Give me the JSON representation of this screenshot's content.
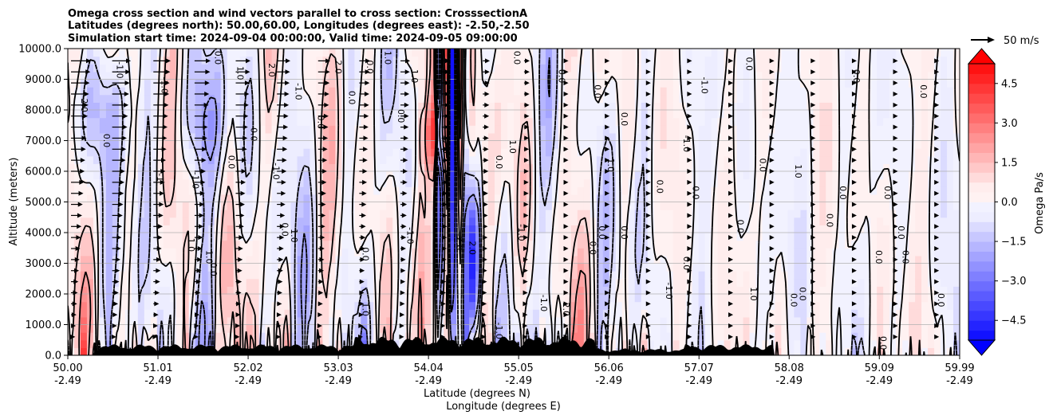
{
  "chart_data": {
    "type": "heatmap",
    "title_lines": [
      "Omega cross section and wind vectors parallel to cross section: CrosssectionA",
      "Latitudes (degrees north): 50.00,60.00, Longitudes (degrees east): -2.50,-2.50",
      "Simulation start time: 2024-09-04 00:00:00, Valid time: 2024-09-05 09:00:00"
    ],
    "ylabel": "Altitude (meters)",
    "xlabel_lat": "Latitude (degrees N)",
    "xlabel_lon": "Longitude (degrees E)",
    "ylim": [
      0,
      10000
    ],
    "yticks": [
      "0.0",
      "1000.0",
      "2000.0",
      "3000.0",
      "4000.0",
      "5000.0",
      "6000.0",
      "7000.0",
      "8000.0",
      "9000.0",
      "10000.0"
    ],
    "ytick_values": [
      0,
      1000,
      2000,
      3000,
      4000,
      5000,
      6000,
      7000,
      8000,
      9000,
      10000
    ],
    "xlim": [
      50.0,
      59.99
    ],
    "xtick_values": [
      50.0,
      51.01,
      52.02,
      53.03,
      54.04,
      55.05,
      56.06,
      57.07,
      58.08,
      59.09,
      59.99
    ],
    "xtick_lat_labels": [
      "50.00",
      "51.01",
      "52.02",
      "53.03",
      "54.04",
      "55.05",
      "56.06",
      "57.07",
      "58.08",
      "59.09",
      "59.99"
    ],
    "xtick_lon_labels": [
      "-2.49",
      "-2.49",
      "-2.49",
      "-2.49",
      "-2.49",
      "-2.49",
      "-2.49",
      "-2.49",
      "-2.49",
      "-2.49",
      "-2.49"
    ],
    "grid": true,
    "colorbar": {
      "label": "Omega Pa/s",
      "range": [
        -5.25,
        5.25
      ],
      "ticks": [
        4.5,
        3.0,
        1.5,
        0.0,
        -1.5,
        -3.0,
        -4.5
      ],
      "tick_labels": [
        "4.5",
        "3.0",
        "1.5",
        "0.0",
        "−1.5",
        "−3.0",
        "−4.5"
      ],
      "extend": "both"
    },
    "quiver_key": {
      "label": "50 m/s",
      "value": 50
    },
    "contour_labels": [
      {
        "lat": 50.15,
        "alt": 8200,
        "text": "-2.0"
      },
      {
        "lat": 50.4,
        "alt": 7000,
        "text": "0.0"
      },
      {
        "lat": 50.55,
        "alt": 9300,
        "text": "-1.0"
      },
      {
        "lat": 51.0,
        "alt": 5800,
        "text": "-1"
      },
      {
        "lat": 51.05,
        "alt": 8800,
        "text": "-1.0"
      },
      {
        "lat": 51.35,
        "alt": 3600,
        "text": "1.0"
      },
      {
        "lat": 51.55,
        "alt": 3200,
        "text": "1.0"
      },
      {
        "lat": 51.65,
        "alt": 9700,
        "text": "0.0"
      },
      {
        "lat": 51.4,
        "alt": 5700,
        "text": "-1.0"
      },
      {
        "lat": 51.6,
        "alt": 2800,
        "text": "0.0"
      },
      {
        "lat": 51.8,
        "alt": 6300,
        "text": "0.0"
      },
      {
        "lat": 51.9,
        "alt": 9200,
        "text": "1.0"
      },
      {
        "lat": 52.05,
        "alt": 7200,
        "text": "0.0"
      },
      {
        "lat": 52.25,
        "alt": 9300,
        "text": "2.0"
      },
      {
        "lat": 52.3,
        "alt": 6000,
        "text": "-1.0"
      },
      {
        "lat": 52.55,
        "alt": 8600,
        "text": "-1.0"
      },
      {
        "lat": 52.5,
        "alt": 3900,
        "text": "1.0"
      },
      {
        "lat": 52.4,
        "alt": 4100,
        "text": "0.0"
      },
      {
        "lat": 52.8,
        "alt": 7600,
        "text": "0.0"
      },
      {
        "lat": 53.0,
        "alt": 9400,
        "text": "2.0"
      },
      {
        "lat": 53.15,
        "alt": 8400,
        "text": "0.0"
      },
      {
        "lat": 53.35,
        "alt": 9400,
        "text": "0.0"
      },
      {
        "lat": 53.55,
        "alt": 9700,
        "text": "1.0"
      },
      {
        "lat": 53.85,
        "alt": 9100,
        "text": "1.0"
      },
      {
        "lat": 53.7,
        "alt": 7800,
        "text": "0.0"
      },
      {
        "lat": 53.8,
        "alt": 3900,
        "text": "-1.0"
      },
      {
        "lat": 53.3,
        "alt": 3300,
        "text": "0.0"
      },
      {
        "lat": 53.3,
        "alt": 1500,
        "text": "1.0"
      },
      {
        "lat": 54.2,
        "alt": 6800,
        "text": "2.0"
      },
      {
        "lat": 54.35,
        "alt": 3700,
        "text": "-2.0"
      },
      {
        "lat": 54.5,
        "alt": 3500,
        "text": "2.0"
      },
      {
        "lat": 54.8,
        "alt": 6300,
        "text": "0.0"
      },
      {
        "lat": 54.95,
        "alt": 6800,
        "text": "1.0"
      },
      {
        "lat": 55.05,
        "alt": 4000,
        "text": "-1.0"
      },
      {
        "lat": 55.0,
        "alt": 9700,
        "text": "0.0"
      },
      {
        "lat": 55.5,
        "alt": 9100,
        "text": "0.0"
      },
      {
        "lat": 55.9,
        "alt": 8600,
        "text": "0.0"
      },
      {
        "lat": 55.95,
        "alt": 4000,
        "text": "0.0"
      },
      {
        "lat": 55.85,
        "alt": 3500,
        "text": "0.0"
      },
      {
        "lat": 56.05,
        "alt": 6200,
        "text": "1.0"
      },
      {
        "lat": 56.2,
        "alt": 4000,
        "text": "0.0"
      },
      {
        "lat": 56.2,
        "alt": 7700,
        "text": "0.0"
      },
      {
        "lat": 56.6,
        "alt": 5500,
        "text": "0.0"
      },
      {
        "lat": 56.7,
        "alt": 2100,
        "text": "-1.0"
      },
      {
        "lat": 56.9,
        "alt": 3000,
        "text": "0.0"
      },
      {
        "lat": 56.9,
        "alt": 6900,
        "text": "-1.0"
      },
      {
        "lat": 57.0,
        "alt": 5300,
        "text": "0.0"
      },
      {
        "lat": 57.1,
        "alt": 8800,
        "text": "-1.0"
      },
      {
        "lat": 57.5,
        "alt": 4200,
        "text": "0.0"
      },
      {
        "lat": 57.6,
        "alt": 9500,
        "text": "0.0"
      },
      {
        "lat": 57.65,
        "alt": 2000,
        "text": "1.0"
      },
      {
        "lat": 57.75,
        "alt": 6200,
        "text": "0.0"
      },
      {
        "lat": 58.1,
        "alt": 1800,
        "text": "0.0"
      },
      {
        "lat": 58.15,
        "alt": 6000,
        "text": "1.0"
      },
      {
        "lat": 58.2,
        "alt": 2000,
        "text": "0.0"
      },
      {
        "lat": 58.5,
        "alt": 4400,
        "text": "0.0"
      },
      {
        "lat": 58.65,
        "alt": 5300,
        "text": "0.0"
      },
      {
        "lat": 58.8,
        "alt": 9100,
        "text": "0.0"
      },
      {
        "lat": 59.05,
        "alt": 3200,
        "text": "0.0"
      },
      {
        "lat": 59.15,
        "alt": 5300,
        "text": "0.0"
      },
      {
        "lat": 59.3,
        "alt": 4000,
        "text": "0.0"
      },
      {
        "lat": 59.55,
        "alt": 8600,
        "text": "0.0"
      },
      {
        "lat": 59.35,
        "alt": 3200,
        "text": "0.0"
      },
      {
        "lat": 59.75,
        "alt": 1800,
        "text": "0.0"
      },
      {
        "lat": 59.1,
        "alt": 400,
        "text": "0.0"
      },
      {
        "lat": 54.8,
        "alt": 800,
        "text": "-1.0"
      },
      {
        "lat": 55.3,
        "alt": 1700,
        "text": "-1.0"
      },
      {
        "lat": 55.55,
        "alt": 1500,
        "text": "2.0"
      }
    ]
  }
}
